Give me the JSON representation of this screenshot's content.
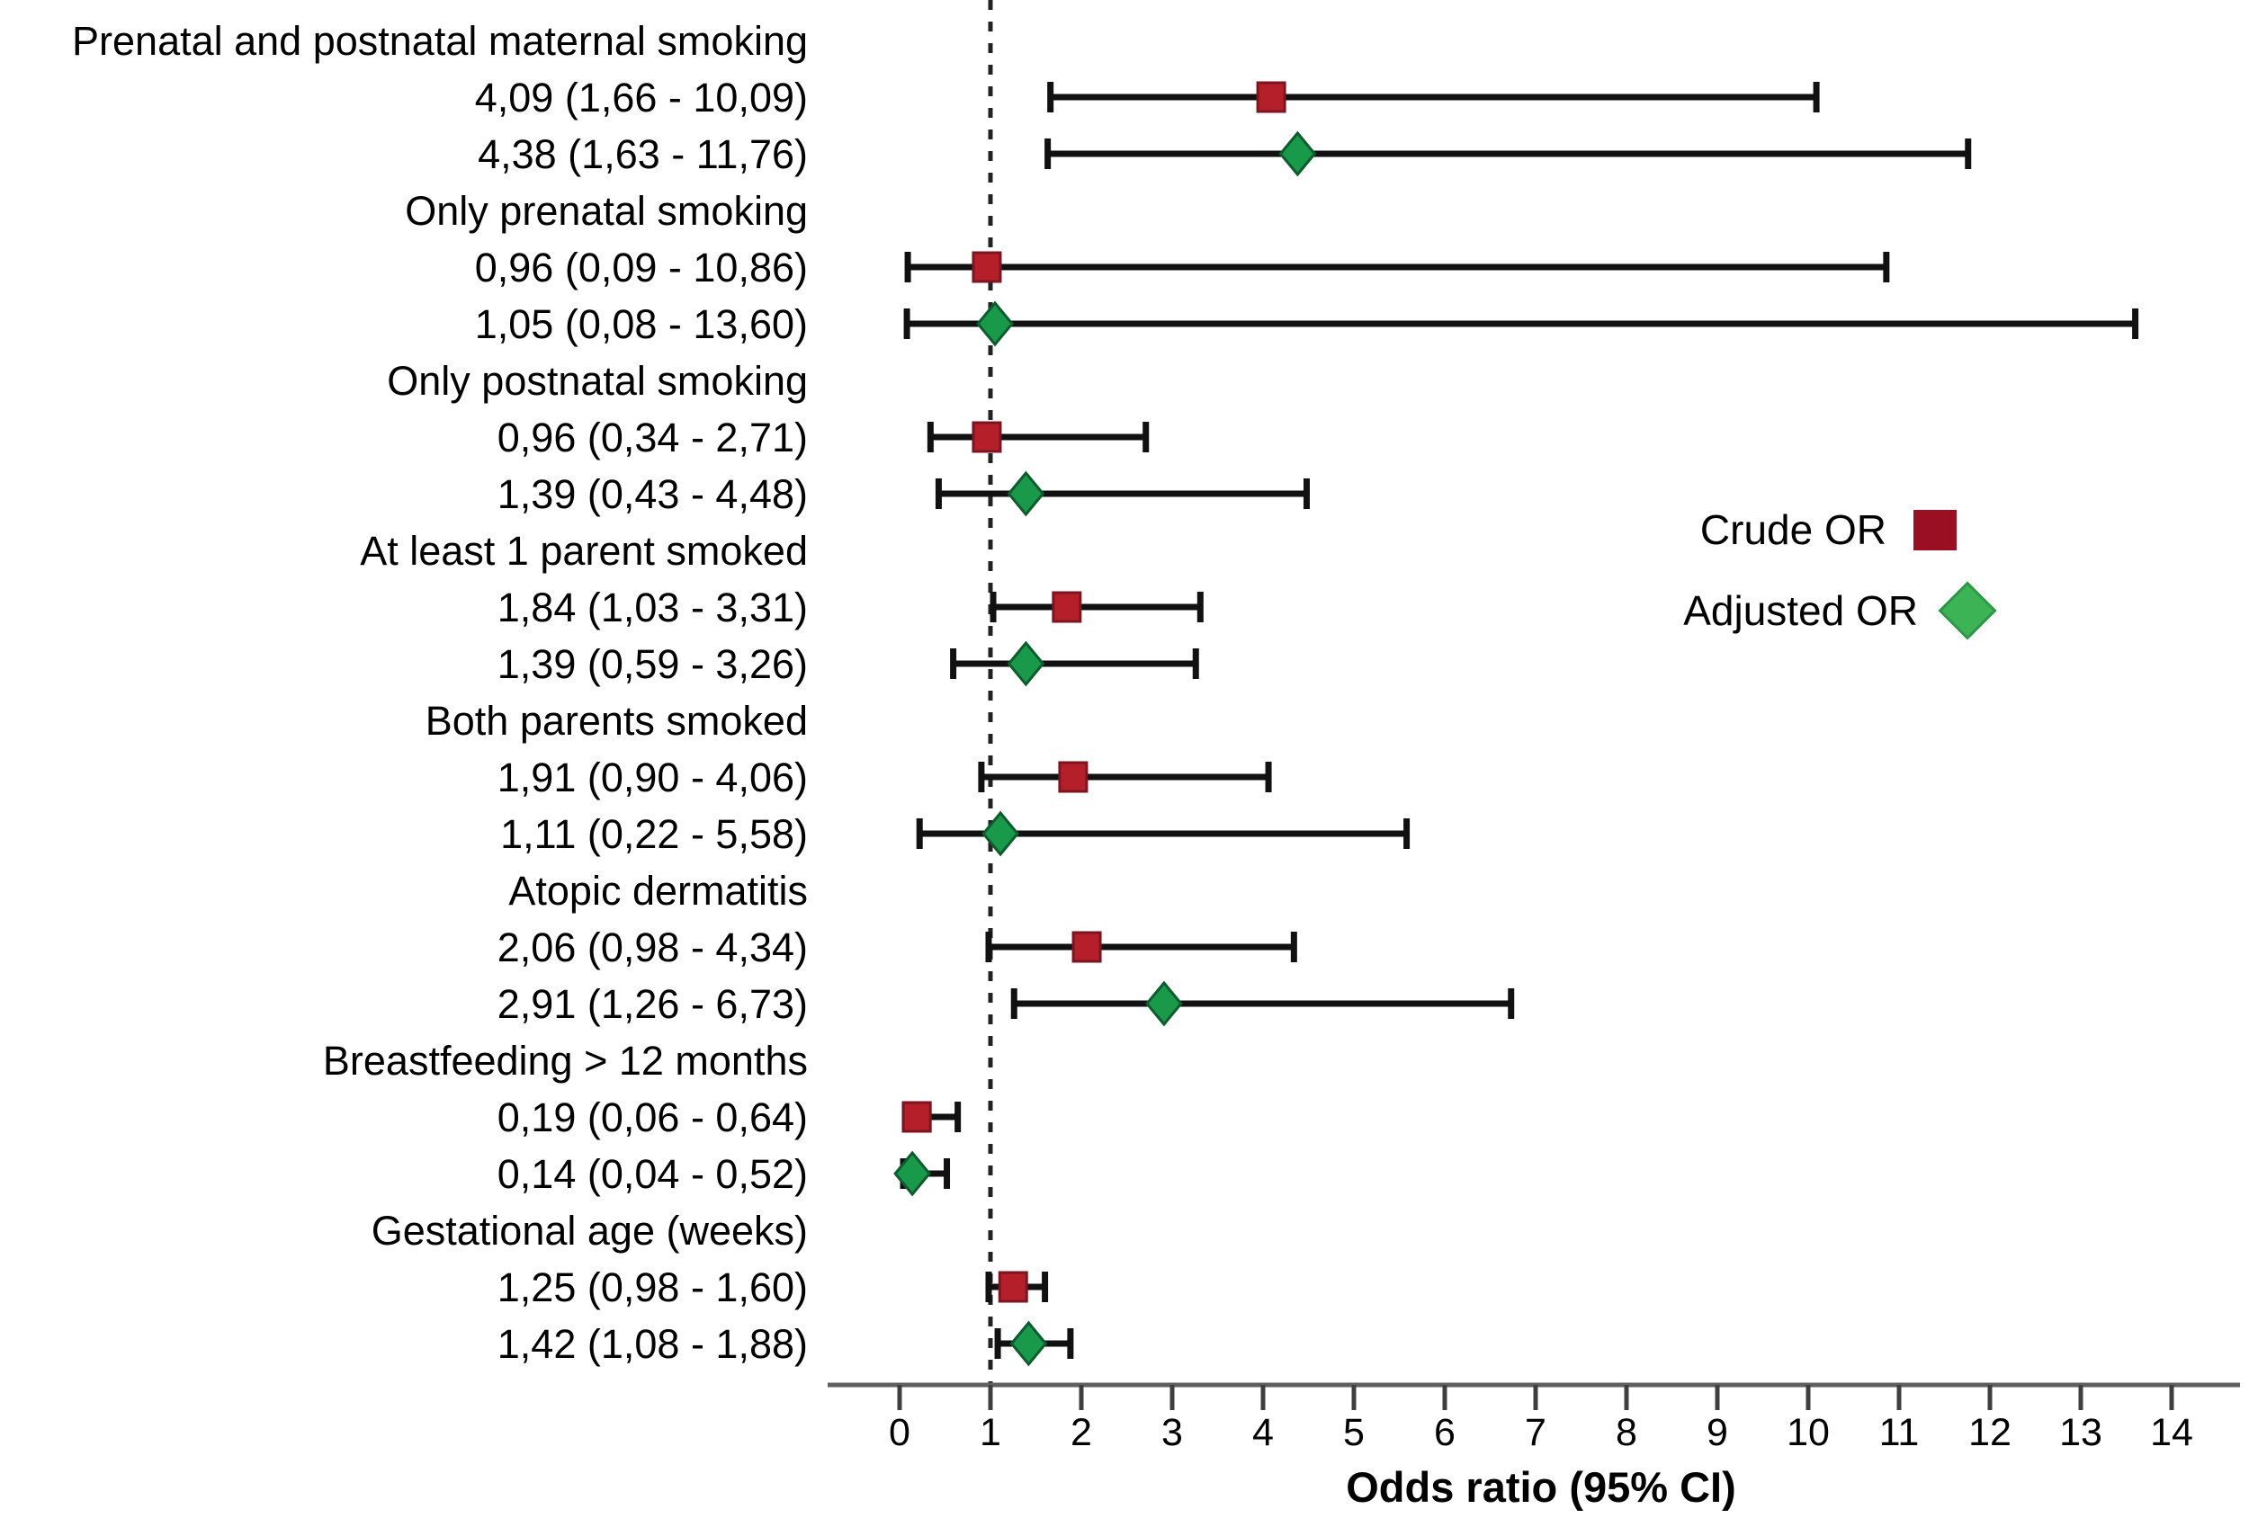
{
  "chart_data": {
    "type": "forest",
    "xlabel": "Odds ratio (95% CI)",
    "xlim": [
      0,
      14
    ],
    "x_ticks": [
      0,
      1,
      2,
      3,
      4,
      5,
      6,
      7,
      8,
      9,
      10,
      11,
      12,
      13,
      14
    ],
    "reference_line_x": 1,
    "grid": false,
    "legend": {
      "position": "middle-right",
      "items": [
        {
          "label": "Crude OR",
          "marker": "square",
          "color": "#9a0f22"
        },
        {
          "label": "Adjusted OR",
          "marker": "diamond",
          "color": "#3cb456"
        }
      ]
    },
    "groups": [
      {
        "label": "Prenatal and postnatal maternal smoking",
        "rows": [
          {
            "kind": "crude",
            "text": "4,09 (1,66 - 10,09)",
            "or": 4.09,
            "lo": 1.66,
            "hi": 10.09
          },
          {
            "kind": "adjusted",
            "text": "4,38 (1,63 - 11,76)",
            "or": 4.38,
            "lo": 1.63,
            "hi": 11.76
          }
        ]
      },
      {
        "label": "Only prenatal smoking",
        "rows": [
          {
            "kind": "crude",
            "text": "0,96 (0,09 - 10,86)",
            "or": 0.96,
            "lo": 0.09,
            "hi": 10.86
          },
          {
            "kind": "adjusted",
            "text": "1,05 (0,08 - 13,60)",
            "or": 1.05,
            "lo": 0.08,
            "hi": 13.6
          }
        ]
      },
      {
        "label": "Only postnatal smoking",
        "rows": [
          {
            "kind": "crude",
            "text": "0,96 (0,34 - 2,71)",
            "or": 0.96,
            "lo": 0.34,
            "hi": 2.71
          },
          {
            "kind": "adjusted",
            "text": "1,39 (0,43 - 4,48)",
            "or": 1.39,
            "lo": 0.43,
            "hi": 4.48
          }
        ]
      },
      {
        "label": "At least 1 parent smoked",
        "rows": [
          {
            "kind": "crude",
            "text": "1,84 (1,03 - 3,31)",
            "or": 1.84,
            "lo": 1.03,
            "hi": 3.31
          },
          {
            "kind": "adjusted",
            "text": "1,39 (0,59 - 3,26)",
            "or": 1.39,
            "lo": 0.59,
            "hi": 3.26
          }
        ]
      },
      {
        "label": "Both parents smoked",
        "rows": [
          {
            "kind": "crude",
            "text": "1,91 (0,90 - 4,06)",
            "or": 1.91,
            "lo": 0.9,
            "hi": 4.06
          },
          {
            "kind": "adjusted",
            "text": "1,11 (0,22 - 5,58)",
            "or": 1.11,
            "lo": 0.22,
            "hi": 5.58
          }
        ]
      },
      {
        "label": "Atopic dermatitis",
        "rows": [
          {
            "kind": "crude",
            "text": "2,06 (0,98 - 4,34)",
            "or": 2.06,
            "lo": 0.98,
            "hi": 4.34
          },
          {
            "kind": "adjusted",
            "text": "2,91 (1,26 - 6,73)",
            "or": 2.91,
            "lo": 1.26,
            "hi": 6.73
          }
        ]
      },
      {
        "label": "Breastfeeding > 12 months",
        "rows": [
          {
            "kind": "crude",
            "text": "0,19 (0,06 - 0,64)",
            "or": 0.19,
            "lo": 0.06,
            "hi": 0.64
          },
          {
            "kind": "adjusted",
            "text": "0,14 (0,04 - 0,52)",
            "or": 0.14,
            "lo": 0.04,
            "hi": 0.52
          }
        ]
      },
      {
        "label": "Gestational age (weeks)",
        "rows": [
          {
            "kind": "crude",
            "text": "1,25 (0,98 - 1,60)",
            "or": 1.25,
            "lo": 0.98,
            "hi": 1.6
          },
          {
            "kind": "adjusted",
            "text": "1,42 (1,08 - 1,88)",
            "or": 1.42,
            "lo": 1.08,
            "hi": 1.88
          }
        ]
      }
    ]
  },
  "colors": {
    "crude_fill": "#b41f2a",
    "crude_stroke": "#7d1420",
    "adjusted_fill": "#189a4a",
    "adjusted_stroke": "#0d5c2e",
    "legend_crude": "#9a0f22",
    "legend_adjusted": "#3cb456",
    "legend_adjusted_stroke": "#2e9747",
    "ci_bar": "#111111",
    "axis_line": "#5f5f5f",
    "tick": "#3f3f3f",
    "reference_line": "#222222",
    "text": "#000000"
  }
}
